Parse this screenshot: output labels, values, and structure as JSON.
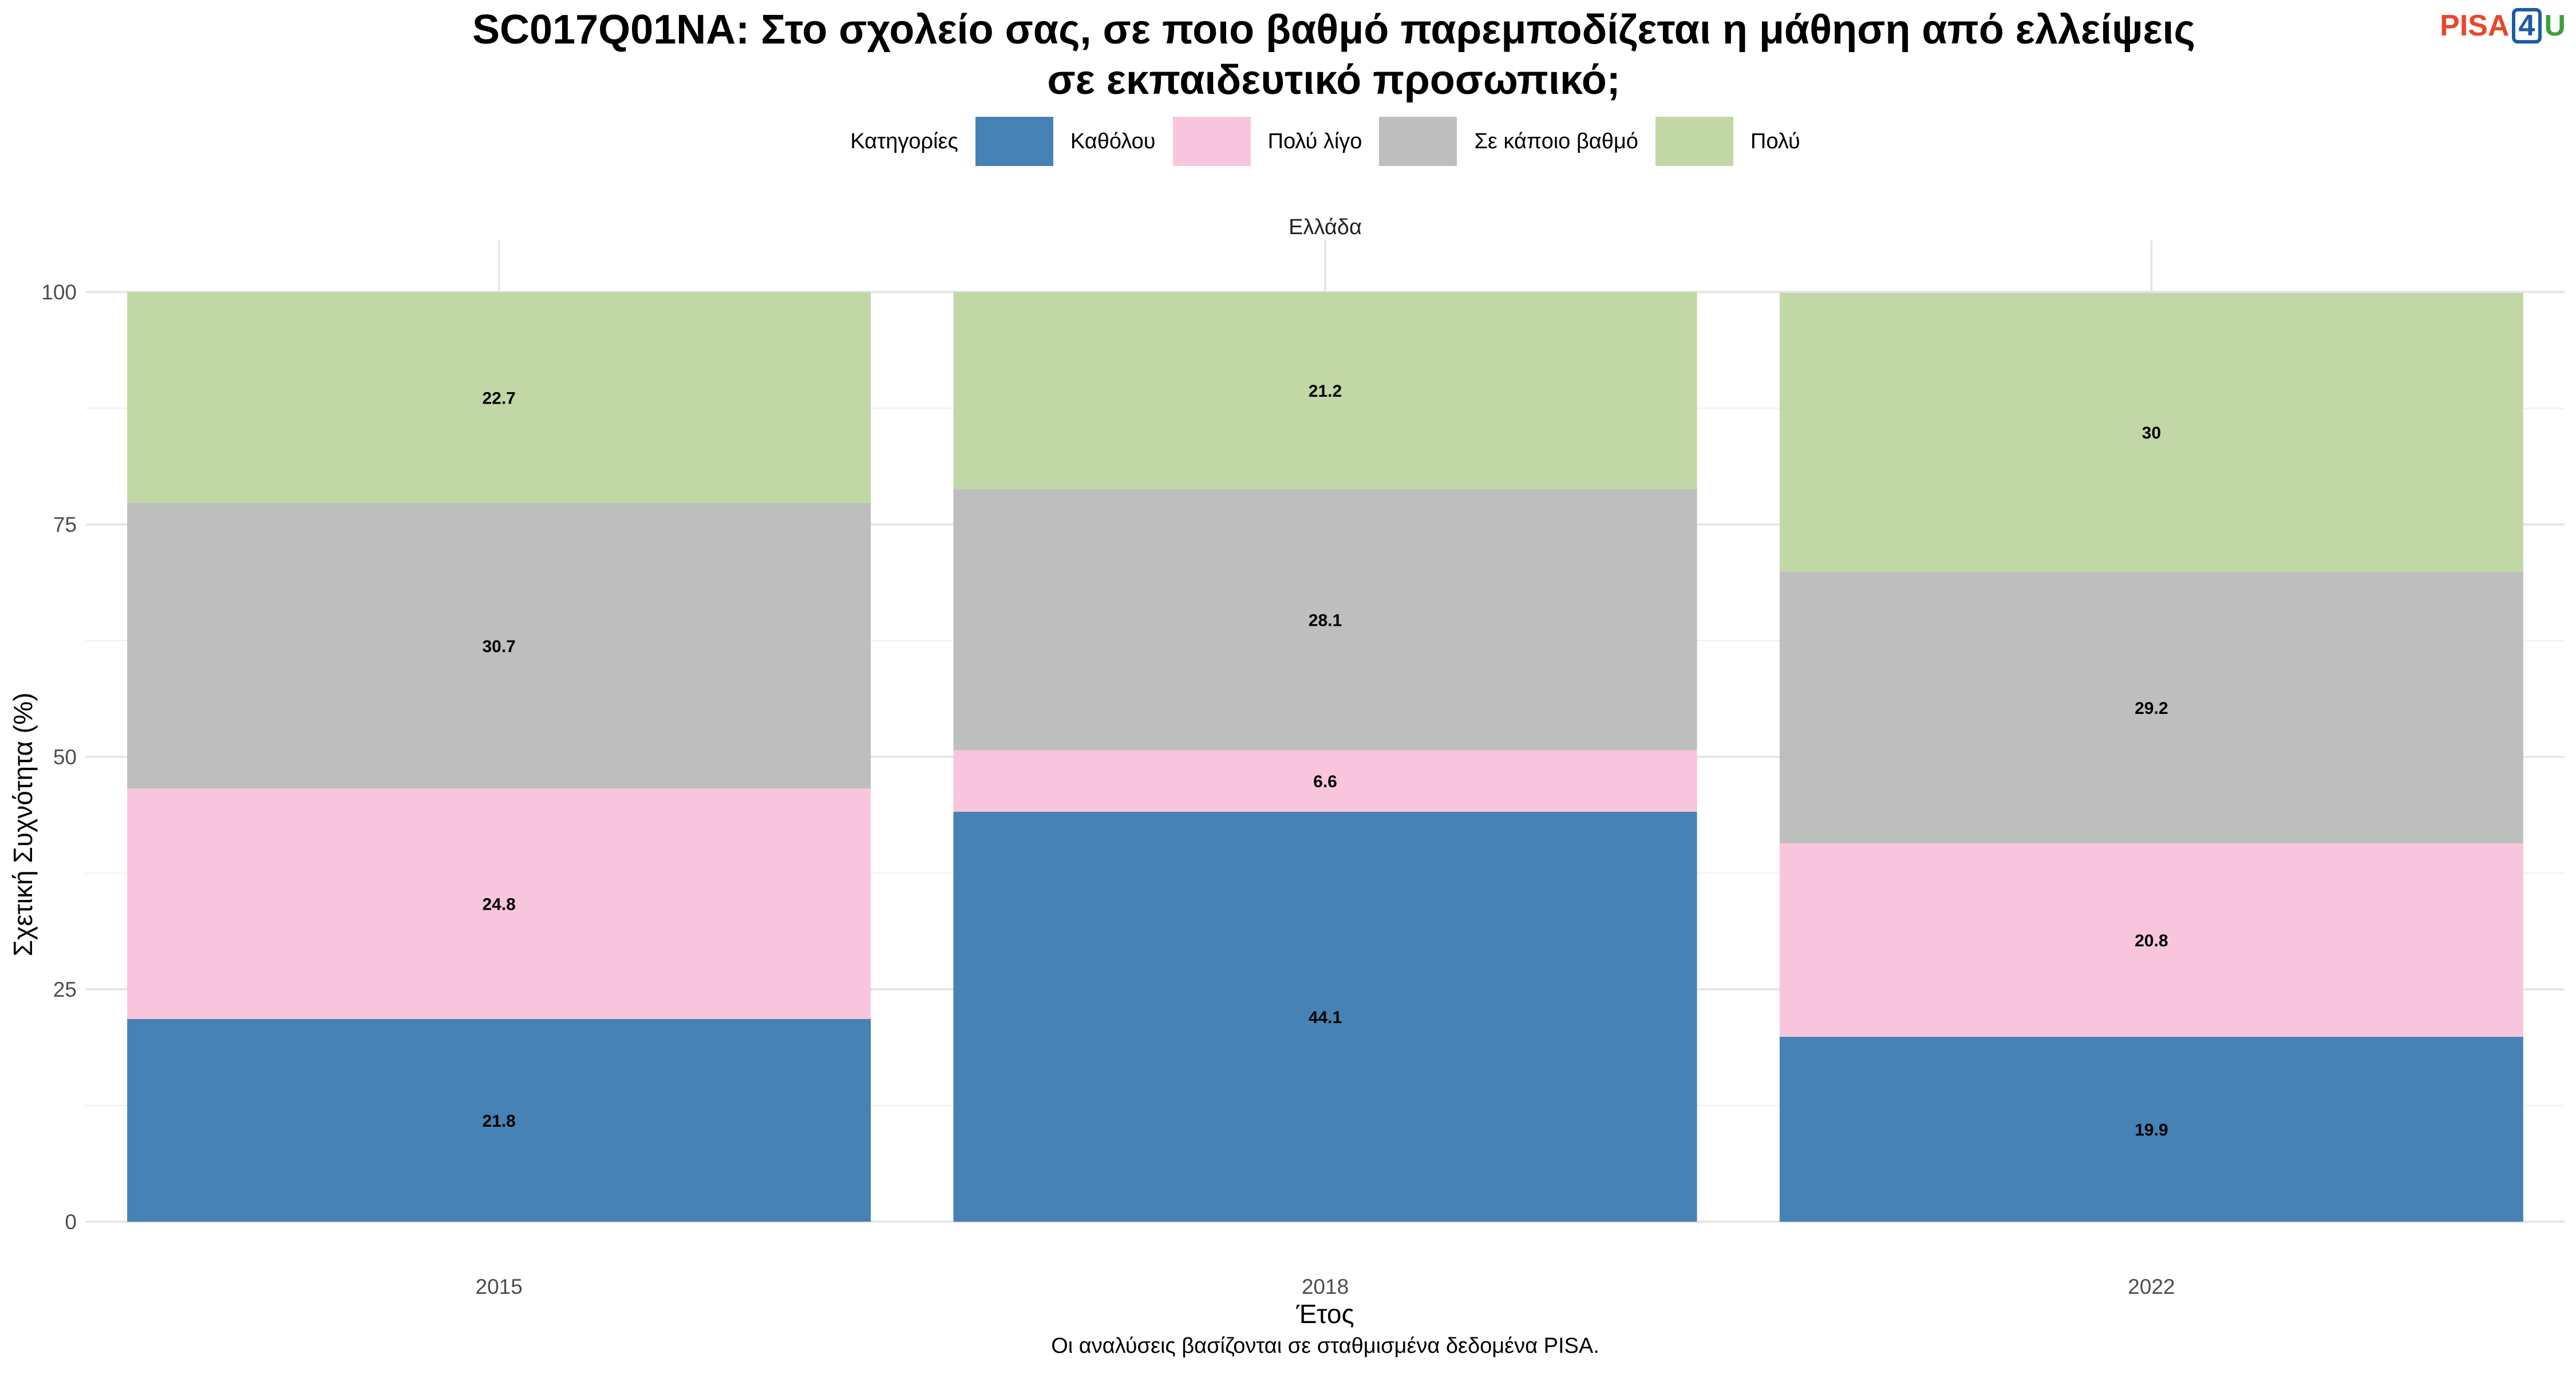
{
  "header": {
    "title_line1": "SC017Q01NA: Στο σχολείο σας, σε ποιο βαθμό παρεμποδίζεται η μάθηση από ελλείψεις",
    "title_line2": "σε εκπαιδευτικό προσωπικό;",
    "logo_part1": "PISA",
    "logo_part2": "4",
    "logo_part3": "U"
  },
  "legend": {
    "title": "Κατηγορίες",
    "items": [
      {
        "label": "Καθόλου",
        "color": "#4682b4"
      },
      {
        "label": "Πολύ λίγο",
        "color": "#f7c6dc"
      },
      {
        "label": "Σε κάποιο βαθμό",
        "color": "#bebebe"
      },
      {
        "label": "Πολύ",
        "color": "#c2d7a6"
      }
    ]
  },
  "chart_data": {
    "type": "bar",
    "stacked": true,
    "facet": "Ελλάδα",
    "categories": [
      "2015",
      "2018",
      "2022"
    ],
    "series": [
      {
        "name": "Καθόλου",
        "color": "#4682b4",
        "values": [
          21.8,
          44.1,
          19.9
        ]
      },
      {
        "name": "Πολύ λίγο",
        "color": "#f7c6dc",
        "values": [
          24.8,
          6.6,
          20.8
        ]
      },
      {
        "name": "Σε κάποιο βαθμό",
        "color": "#bebebe",
        "values": [
          30.7,
          28.1,
          29.2
        ]
      },
      {
        "name": "Πολύ",
        "color": "#c2d7a6",
        "values": [
          22.7,
          21.2,
          30
        ]
      }
    ],
    "xlabel": "Έτος",
    "ylabel": "Σχετική Συχνότητα (%)",
    "ylim": [
      0,
      100
    ],
    "yticks": [
      0,
      25,
      50,
      75,
      100
    ],
    "grid": true,
    "legend_position": "top"
  },
  "caption": "Οι αναλύσεις βασίζονται σε σταθμισμένα δεδομένα PISA."
}
